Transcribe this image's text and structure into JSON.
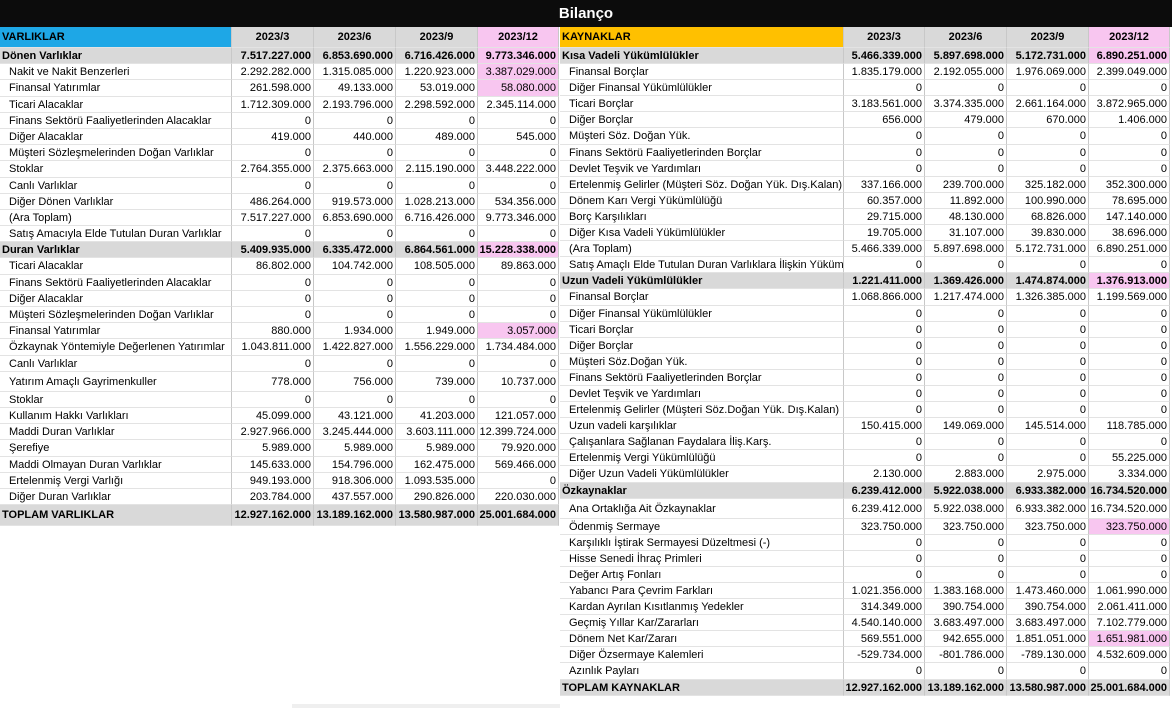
{
  "title": "Bilanço",
  "colors": {
    "title_bg": "#0c0c0c",
    "assets_header": "#1ea7e6",
    "liabilities_header": "#ffc000",
    "highlight": "#f8c6f0",
    "section_bg": "#d9d9d9"
  },
  "periods": [
    "2023/3",
    "2023/6",
    "2023/9",
    "2023/12"
  ],
  "assets": {
    "header": "VARLIKLAR",
    "rows": [
      {
        "type": "sec",
        "label": "Dönen Varlıklar",
        "values": [
          "7.517.227.000",
          "6.853.690.000",
          "6.716.426.000",
          "9.773.346.000"
        ],
        "highlight": [
          false,
          false,
          false,
          true
        ]
      },
      {
        "type": "item",
        "label": "Nakit ve Nakit Benzerleri",
        "values": [
          "2.292.282.000",
          "1.315.085.000",
          "1.220.923.000",
          "3.387.029.000"
        ],
        "highlight": [
          false,
          false,
          false,
          true
        ]
      },
      {
        "type": "item",
        "label": "Finansal Yatırımlar",
        "values": [
          "261.598.000",
          "49.133.000",
          "53.019.000",
          "58.080.000"
        ],
        "highlight": [
          false,
          false,
          false,
          true
        ]
      },
      {
        "type": "item",
        "label": "Ticari Alacaklar",
        "values": [
          "1.712.309.000",
          "2.193.796.000",
          "2.298.592.000",
          "2.345.114.000"
        ]
      },
      {
        "type": "item",
        "label": "Finans Sektörü Faaliyetlerinden Alacaklar",
        "values": [
          "0",
          "0",
          "0",
          "0"
        ]
      },
      {
        "type": "item",
        "label": "Diğer Alacaklar",
        "values": [
          "419.000",
          "440.000",
          "489.000",
          "545.000"
        ]
      },
      {
        "type": "item",
        "label": "Müşteri Sözleşmelerinden Doğan Varlıklar",
        "values": [
          "0",
          "0",
          "0",
          "0"
        ]
      },
      {
        "type": "item",
        "label": "Stoklar",
        "values": [
          "2.764.355.000",
          "2.375.663.000",
          "2.115.190.000",
          "3.448.222.000"
        ]
      },
      {
        "type": "item",
        "label": "Canlı Varlıklar",
        "values": [
          "0",
          "0",
          "0",
          "0"
        ]
      },
      {
        "type": "item",
        "label": "Diğer Dönen Varlıklar",
        "values": [
          "486.264.000",
          "919.573.000",
          "1.028.213.000",
          "534.356.000"
        ]
      },
      {
        "type": "item",
        "label": "(Ara Toplam)",
        "values": [
          "7.517.227.000",
          "6.853.690.000",
          "6.716.426.000",
          "9.773.346.000"
        ]
      },
      {
        "type": "item",
        "label": "Satış Amacıyla Elde Tutulan Duran Varlıklar",
        "values": [
          "0",
          "0",
          "0",
          "0"
        ]
      },
      {
        "type": "sec",
        "label": "Duran Varlıklar",
        "values": [
          "5.409.935.000",
          "6.335.472.000",
          "6.864.561.000",
          "15.228.338.000"
        ],
        "highlight": [
          false,
          false,
          false,
          true
        ]
      },
      {
        "type": "item",
        "label": "Ticari Alacaklar",
        "values": [
          "86.802.000",
          "104.742.000",
          "108.505.000",
          "89.863.000"
        ]
      },
      {
        "type": "item",
        "label": "Finans Sektörü Faaliyetlerinden Alacaklar",
        "values": [
          "0",
          "0",
          "0",
          "0"
        ]
      },
      {
        "type": "item",
        "label": "Diğer Alacaklar",
        "values": [
          "0",
          "0",
          "0",
          "0"
        ]
      },
      {
        "type": "item",
        "label": "Müşteri Sözleşmelerinden Doğan Varlıklar",
        "values": [
          "0",
          "0",
          "0",
          "0"
        ]
      },
      {
        "type": "item",
        "label": "Finansal Yatırımlar",
        "values": [
          "880.000",
          "1.934.000",
          "1.949.000",
          "3.057.000"
        ],
        "highlight": [
          false,
          false,
          false,
          true
        ]
      },
      {
        "type": "item",
        "label": "Özkaynak Yöntemiyle Değerlenen Yatırımlar",
        "values": [
          "1.043.811.000",
          "1.422.827.000",
          "1.556.229.000",
          "1.734.484.000"
        ]
      },
      {
        "type": "item",
        "label": "Canlı Varlıklar",
        "values": [
          "0",
          "0",
          "0",
          "0"
        ]
      },
      {
        "type": "item",
        "label": "Yatırım Amaçlı Gayrimenkuller",
        "values": [
          "778.000",
          "756.000",
          "739.000",
          "10.737.000"
        ]
      },
      {
        "type": "item",
        "label": "Stoklar",
        "values": [
          "0",
          "0",
          "0",
          "0"
        ]
      },
      {
        "type": "item",
        "label": "Kullanım Hakkı Varlıkları",
        "values": [
          "45.099.000",
          "43.121.000",
          "41.203.000",
          "121.057.000"
        ]
      },
      {
        "type": "item",
        "label": "Maddi Duran Varlıklar",
        "values": [
          "2.927.966.000",
          "3.245.444.000",
          "3.603.111.000",
          "12.399.724.000"
        ]
      },
      {
        "type": "item",
        "label": "Şerefiye",
        "values": [
          "5.989.000",
          "5.989.000",
          "5.989.000",
          "79.920.000"
        ]
      },
      {
        "type": "item",
        "label": "Maddi Olmayan Duran Varlıklar",
        "values": [
          "145.633.000",
          "154.796.000",
          "162.475.000",
          "569.466.000"
        ]
      },
      {
        "type": "item",
        "label": "Ertelenmiş Vergi Varlığı",
        "values": [
          "949.193.000",
          "918.306.000",
          "1.093.535.000",
          "0"
        ]
      },
      {
        "type": "item",
        "label": "Diğer Duran Varlıklar",
        "values": [
          "203.784.000",
          "437.557.000",
          "290.826.000",
          "220.030.000"
        ]
      },
      {
        "type": "sec",
        "label": "TOPLAM VARLIKLAR",
        "values": [
          "12.927.162.000",
          "13.189.162.000",
          "13.580.987.000",
          "25.001.684.000"
        ]
      }
    ]
  },
  "liabilities": {
    "header": "KAYNAKLAR",
    "rows": [
      {
        "type": "sec",
        "label": "Kısa Vadeli Yükümlülükler",
        "values": [
          "5.466.339.000",
          "5.897.698.000",
          "5.172.731.000",
          "6.890.251.000"
        ],
        "highlight": [
          false,
          false,
          false,
          true
        ]
      },
      {
        "type": "item",
        "label": "Finansal Borçlar",
        "values": [
          "1.835.179.000",
          "2.192.055.000",
          "1.976.069.000",
          "2.399.049.000"
        ]
      },
      {
        "type": "item",
        "label": "Diğer Finansal Yükümlülükler",
        "values": [
          "0",
          "0",
          "0",
          "0"
        ]
      },
      {
        "type": "item",
        "label": "Ticari Borçlar",
        "values": [
          "3.183.561.000",
          "3.374.335.000",
          "2.661.164.000",
          "3.872.965.000"
        ]
      },
      {
        "type": "item",
        "label": "Diğer Borçlar",
        "values": [
          "656.000",
          "479.000",
          "670.000",
          "1.406.000"
        ]
      },
      {
        "type": "item",
        "label": "Müşteri Söz. Doğan Yük.",
        "values": [
          "0",
          "0",
          "0",
          "0"
        ]
      },
      {
        "type": "item",
        "label": "Finans Sektörü Faaliyetlerinden Borçlar",
        "values": [
          "0",
          "0",
          "0",
          "0"
        ]
      },
      {
        "type": "item",
        "label": "Devlet Teşvik ve Yardımları",
        "values": [
          "0",
          "0",
          "0",
          "0"
        ]
      },
      {
        "type": "item",
        "label": "Ertelenmiş Gelirler (Müşteri Söz. Doğan Yük. Dış.Kalan)",
        "values": [
          "337.166.000",
          "239.700.000",
          "325.182.000",
          "352.300.000"
        ]
      },
      {
        "type": "item",
        "label": "Dönem Karı Vergi Yükümlülüğü",
        "values": [
          "60.357.000",
          "11.892.000",
          "100.990.000",
          "78.695.000"
        ]
      },
      {
        "type": "item",
        "label": "Borç Karşılıkları",
        "values": [
          "29.715.000",
          "48.130.000",
          "68.826.000",
          "147.140.000"
        ]
      },
      {
        "type": "item",
        "label": "Diğer Kısa Vadeli Yükümlülükler",
        "values": [
          "19.705.000",
          "31.107.000",
          "39.830.000",
          "38.696.000"
        ]
      },
      {
        "type": "item",
        "label": "(Ara Toplam)",
        "values": [
          "5.466.339.000",
          "5.897.698.000",
          "5.172.731.000",
          "6.890.251.000"
        ]
      },
      {
        "type": "item",
        "label": "Satış Amaçlı Elde Tutulan Duran Varlıklara İlişkin Yükümlülükler",
        "values": [
          "0",
          "0",
          "0",
          "0"
        ]
      },
      {
        "type": "sec",
        "label": "Uzun Vadeli Yükümlülükler",
        "values": [
          "1.221.411.000",
          "1.369.426.000",
          "1.474.874.000",
          "1.376.913.000"
        ],
        "highlight": [
          false,
          false,
          false,
          true
        ]
      },
      {
        "type": "item",
        "label": "Finansal Borçlar",
        "values": [
          "1.068.866.000",
          "1.217.474.000",
          "1.326.385.000",
          "1.199.569.000"
        ]
      },
      {
        "type": "item",
        "label": "Diğer Finansal Yükümlülükler",
        "values": [
          "0",
          "0",
          "0",
          "0"
        ]
      },
      {
        "type": "item",
        "label": "Ticari Borçlar",
        "values": [
          "0",
          "0",
          "0",
          "0"
        ]
      },
      {
        "type": "item",
        "label": "Diğer Borçlar",
        "values": [
          "0",
          "0",
          "0",
          "0"
        ]
      },
      {
        "type": "item",
        "label": "Müşteri Söz.Doğan Yük.",
        "values": [
          "0",
          "0",
          "0",
          "0"
        ]
      },
      {
        "type": "item",
        "label": "Finans Sektörü Faaliyetlerinden Borçlar",
        "values": [
          "0",
          "0",
          "0",
          "0"
        ]
      },
      {
        "type": "item",
        "label": "Devlet Teşvik ve Yardımları",
        "values": [
          "0",
          "0",
          "0",
          "0"
        ]
      },
      {
        "type": "item",
        "label": "Ertelenmiş Gelirler (Müşteri Söz.Doğan Yük. Dış.Kalan)",
        "values": [
          "0",
          "0",
          "0",
          "0"
        ]
      },
      {
        "type": "item",
        "label": "Uzun vadeli karşılıklar",
        "values": [
          "150.415.000",
          "149.069.000",
          "145.514.000",
          "118.785.000"
        ]
      },
      {
        "type": "item",
        "label": "Çalışanlara Sağlanan Faydalara İliş.Karş.",
        "values": [
          "0",
          "0",
          "0",
          "0"
        ]
      },
      {
        "type": "item",
        "label": "Ertelenmiş Vergi Yükümlülüğü",
        "values": [
          "0",
          "0",
          "0",
          "55.225.000"
        ]
      },
      {
        "type": "item",
        "label": "Diğer Uzun Vadeli Yükümlülükler",
        "values": [
          "2.130.000",
          "2.883.000",
          "2.975.000",
          "3.334.000"
        ]
      },
      {
        "type": "sec",
        "label": "Özkaynaklar",
        "values": [
          "6.239.412.000",
          "5.922.038.000",
          "6.933.382.000",
          "16.734.520.000"
        ]
      },
      {
        "type": "item",
        "label": "Ana Ortaklığa Ait Özkaynaklar",
        "values": [
          "6.239.412.000",
          "5.922.038.000",
          "6.933.382.000",
          "16.734.520.000"
        ]
      },
      {
        "type": "item",
        "label": "Ödenmiş Sermaye",
        "values": [
          "323.750.000",
          "323.750.000",
          "323.750.000",
          "323.750.000"
        ],
        "highlight": [
          false,
          false,
          false,
          true
        ]
      },
      {
        "type": "item",
        "label": "Karşılıklı İştirak Sermayesi Düzeltmesi (-)",
        "values": [
          "0",
          "0",
          "0",
          "0"
        ]
      },
      {
        "type": "item",
        "label": "Hisse Senedi İhraç Primleri",
        "values": [
          "0",
          "0",
          "0",
          "0"
        ]
      },
      {
        "type": "item",
        "label": "Değer Artış Fonları",
        "values": [
          "0",
          "0",
          "0",
          "0"
        ]
      },
      {
        "type": "item",
        "label": "Yabancı Para Çevrim Farkları",
        "values": [
          "1.021.356.000",
          "1.383.168.000",
          "1.473.460.000",
          "1.061.990.000"
        ]
      },
      {
        "type": "item",
        "label": "Kardan Ayrılan Kısıtlanmış Yedekler",
        "values": [
          "314.349.000",
          "390.754.000",
          "390.754.000",
          "2.061.411.000"
        ]
      },
      {
        "type": "item",
        "label": "Geçmiş Yıllar Kar/Zararları",
        "values": [
          "4.540.140.000",
          "3.683.497.000",
          "3.683.497.000",
          "7.102.779.000"
        ]
      },
      {
        "type": "item",
        "label": "Dönem Net Kar/Zararı",
        "values": [
          "569.551.000",
          "942.655.000",
          "1.851.051.000",
          "1.651.981.000"
        ],
        "highlight": [
          false,
          false,
          false,
          true
        ]
      },
      {
        "type": "item",
        "label": "Diğer Özsermaye Kalemleri",
        "values": [
          "-529.734.000",
          "-801.786.000",
          "-789.130.000",
          "4.532.609.000"
        ]
      },
      {
        "type": "item",
        "label": "Azınlık Payları",
        "values": [
          "0",
          "0",
          "0",
          "0"
        ]
      },
      {
        "type": "sec",
        "label": "TOPLAM KAYNAKLAR",
        "values": [
          "12.927.162.000",
          "13.189.162.000",
          "13.580.987.000",
          "25.001.684.000"
        ]
      }
    ]
  }
}
